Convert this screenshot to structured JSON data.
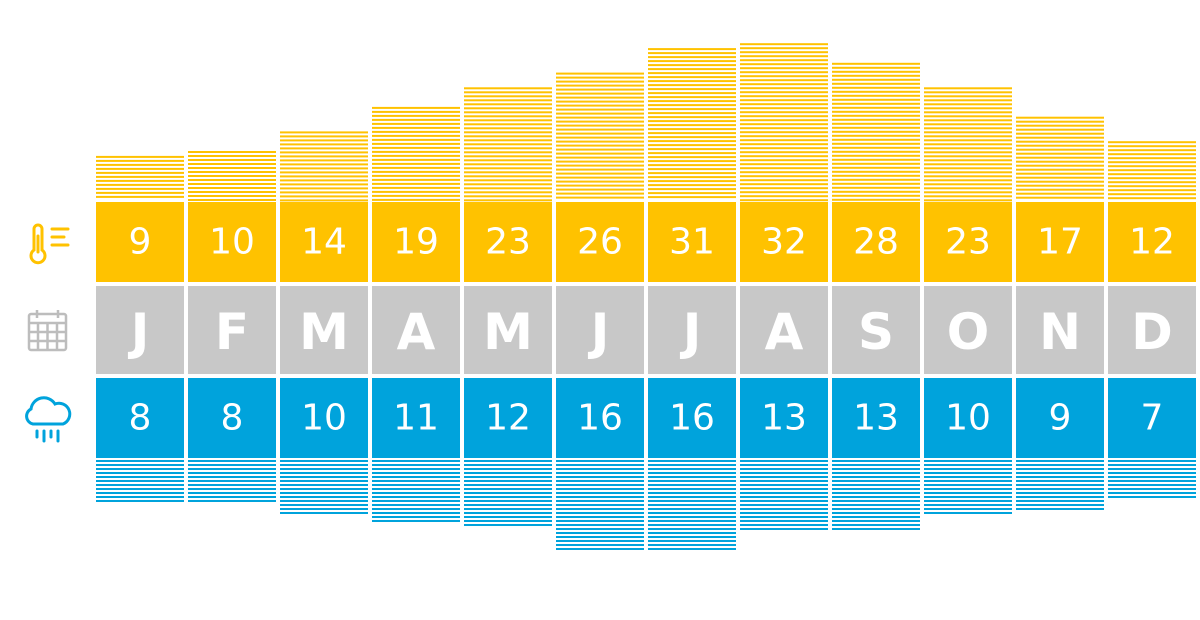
{
  "chart_data": {
    "type": "table",
    "categories": [
      "J",
      "F",
      "M",
      "A",
      "M",
      "J",
      "J",
      "A",
      "S",
      "O",
      "N",
      "D"
    ],
    "series": [
      {
        "values": [
          9,
          10,
          14,
          19,
          23,
          26,
          31,
          32,
          28,
          23,
          17,
          12
        ]
      },
      {
        "values": [
          8,
          8,
          10,
          11,
          12,
          16,
          16,
          13,
          13,
          10,
          9,
          7
        ]
      }
    ],
    "labels": {
      "temp": [
        "9",
        "10",
        "14",
        "19",
        "23",
        "26",
        "31",
        "32",
        "28",
        "23",
        "17",
        "12"
      ],
      "rain": [
        "8",
        "8",
        "10",
        "11",
        "12",
        "16",
        "16",
        "13",
        "13",
        "10",
        "9",
        "7"
      ]
    },
    "icons": {
      "temperature": "thermometer-icon",
      "month": "calendar-icon",
      "rain": "rain-cloud-icon"
    },
    "colors": {
      "temperature": "#ffc200",
      "month": "#c8c8c8",
      "rain": "#00a3dc",
      "icon_gray": "#bdbdbd"
    }
  }
}
